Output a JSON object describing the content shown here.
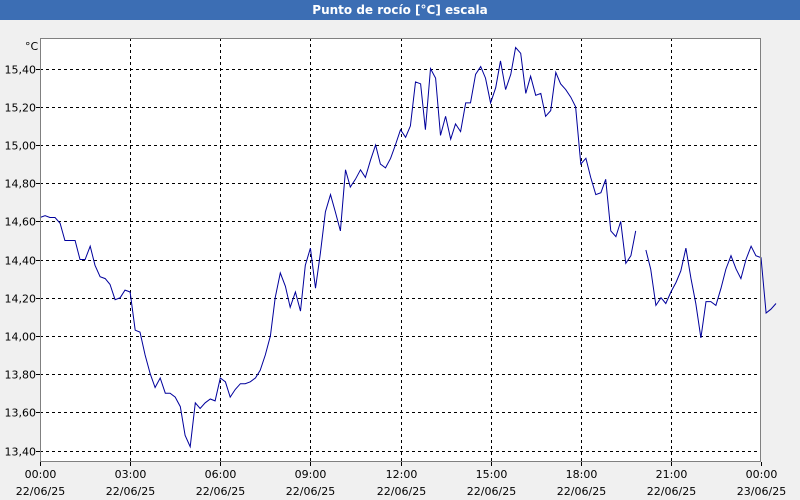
{
  "window": {
    "title": "Punto de rocío [°C] escala"
  },
  "colors": {
    "line": "#00009c",
    "grid": "#000000",
    "plot_bg": "#ffffff",
    "title_bg": "#3c6eb4"
  },
  "chart_data": {
    "type": "line",
    "title": "Punto de rocío [°C] escala",
    "ylabel": "°C",
    "xlabel": "",
    "grid": true,
    "xlim": [
      0,
      24
    ],
    "ylim": [
      13.34,
      15.56
    ],
    "y_ticks": [
      {
        "value": 13.4,
        "label": "13,40"
      },
      {
        "value": 13.6,
        "label": "13,60"
      },
      {
        "value": 13.8,
        "label": "13,80"
      },
      {
        "value": 14.0,
        "label": "14,00"
      },
      {
        "value": 14.2,
        "label": "14,20"
      },
      {
        "value": 14.4,
        "label": "14,40"
      },
      {
        "value": 14.6,
        "label": "14,60"
      },
      {
        "value": 14.8,
        "label": "14,80"
      },
      {
        "value": 15.0,
        "label": "15,00"
      },
      {
        "value": 15.2,
        "label": "15,20"
      },
      {
        "value": 15.4,
        "label": "15,40"
      }
    ],
    "x_ticks": [
      {
        "value": 0,
        "time": "00:00",
        "date": "22/06/25"
      },
      {
        "value": 3,
        "time": "03:00",
        "date": "22/06/25"
      },
      {
        "value": 6,
        "time": "06:00",
        "date": "22/06/25"
      },
      {
        "value": 9,
        "time": "09:00",
        "date": "22/06/25"
      },
      {
        "value": 12,
        "time": "12:00",
        "date": "22/06/25"
      },
      {
        "value": 15,
        "time": "15:00",
        "date": "22/06/25"
      },
      {
        "value": 18,
        "time": "18:00",
        "date": "22/06/25"
      },
      {
        "value": 21,
        "time": "21:00",
        "date": "22/06/25"
      },
      {
        "value": 24,
        "time": "00:00",
        "date": "23/06/25"
      }
    ],
    "series": [
      {
        "segments": [
          [
            [
              0.0,
              14.62
            ],
            [
              0.17,
              14.63
            ],
            [
              0.33,
              14.62
            ],
            [
              0.5,
              14.62
            ],
            [
              0.67,
              14.59
            ],
            [
              0.83,
              14.5
            ],
            [
              1.0,
              14.5
            ],
            [
              1.17,
              14.5
            ],
            [
              1.33,
              14.4
            ],
            [
              1.5,
              14.4
            ],
            [
              1.67,
              14.47
            ],
            [
              1.83,
              14.37
            ],
            [
              2.0,
              14.31
            ],
            [
              2.17,
              14.3
            ],
            [
              2.33,
              14.27
            ],
            [
              2.5,
              14.19
            ],
            [
              2.67,
              14.2
            ],
            [
              2.83,
              14.24
            ],
            [
              3.0,
              14.23
            ],
            [
              3.17,
              14.03
            ],
            [
              3.33,
              14.02
            ],
            [
              3.5,
              13.9
            ],
            [
              3.67,
              13.8
            ],
            [
              3.83,
              13.73
            ],
            [
              4.0,
              13.78
            ],
            [
              4.17,
              13.7
            ],
            [
              4.33,
              13.7
            ],
            [
              4.5,
              13.68
            ],
            [
              4.67,
              13.63
            ],
            [
              4.83,
              13.48
            ],
            [
              5.0,
              13.42
            ],
            [
              5.17,
              13.65
            ],
            [
              5.33,
              13.62
            ],
            [
              5.5,
              13.65
            ],
            [
              5.67,
              13.67
            ],
            [
              5.83,
              13.66
            ],
            [
              6.0,
              13.78
            ],
            [
              6.17,
              13.76
            ],
            [
              6.33,
              13.68
            ],
            [
              6.5,
              13.72
            ],
            [
              6.67,
              13.75
            ],
            [
              6.83,
              13.75
            ],
            [
              7.0,
              13.76
            ],
            [
              7.17,
              13.78
            ],
            [
              7.33,
              13.82
            ],
            [
              7.5,
              13.9
            ],
            [
              7.67,
              14.0
            ],
            [
              7.83,
              14.2
            ],
            [
              8.0,
              14.33
            ],
            [
              8.17,
              14.26
            ],
            [
              8.33,
              14.15
            ],
            [
              8.5,
              14.23
            ],
            [
              8.67,
              14.13
            ],
            [
              8.83,
              14.37
            ],
            [
              9.0,
              14.46
            ],
            [
              9.17,
              14.25
            ],
            [
              9.33,
              14.43
            ],
            [
              9.5,
              14.65
            ],
            [
              9.67,
              14.74
            ],
            [
              9.83,
              14.65
            ],
            [
              10.0,
              14.55
            ],
            [
              10.17,
              14.87
            ],
            [
              10.33,
              14.78
            ],
            [
              10.5,
              14.82
            ],
            [
              10.67,
              14.87
            ],
            [
              10.83,
              14.83
            ],
            [
              11.0,
              14.92
            ],
            [
              11.17,
              15.0
            ],
            [
              11.33,
              14.9
            ],
            [
              11.5,
              14.88
            ],
            [
              11.67,
              14.93
            ],
            [
              11.83,
              15.0
            ],
            [
              12.0,
              15.08
            ],
            [
              12.17,
              15.04
            ],
            [
              12.33,
              15.1
            ],
            [
              12.5,
              15.33
            ],
            [
              12.67,
              15.32
            ],
            [
              12.83,
              15.08
            ],
            [
              13.0,
              15.4
            ],
            [
              13.17,
              15.35
            ],
            [
              13.33,
              15.05
            ],
            [
              13.5,
              15.15
            ],
            [
              13.67,
              15.03
            ],
            [
              13.83,
              15.11
            ],
            [
              14.0,
              15.07
            ],
            [
              14.17,
              15.22
            ],
            [
              14.33,
              15.22
            ],
            [
              14.5,
              15.37
            ],
            [
              14.67,
              15.41
            ],
            [
              14.83,
              15.35
            ],
            [
              15.0,
              15.22
            ],
            [
              15.17,
              15.3
            ],
            [
              15.33,
              15.44
            ],
            [
              15.5,
              15.29
            ],
            [
              15.67,
              15.37
            ],
            [
              15.83,
              15.51
            ],
            [
              16.0,
              15.48
            ],
            [
              16.17,
              15.27
            ],
            [
              16.33,
              15.36
            ],
            [
              16.5,
              15.26
            ],
            [
              16.67,
              15.27
            ],
            [
              16.83,
              15.15
            ],
            [
              17.0,
              15.18
            ],
            [
              17.17,
              15.38
            ],
            [
              17.33,
              15.32
            ],
            [
              17.5,
              15.29
            ],
            [
              17.67,
              15.25
            ],
            [
              17.83,
              15.2
            ],
            [
              18.0,
              14.9
            ],
            [
              18.17,
              14.93
            ],
            [
              18.33,
              14.83
            ],
            [
              18.5,
              14.74
            ],
            [
              18.67,
              14.75
            ],
            [
              18.83,
              14.82
            ],
            [
              19.0,
              14.55
            ],
            [
              19.17,
              14.52
            ],
            [
              19.33,
              14.6
            ],
            [
              19.5,
              14.38
            ],
            [
              19.67,
              14.42
            ],
            [
              19.83,
              14.55
            ]
          ],
          [
            [
              20.17,
              14.45
            ],
            [
              20.33,
              14.35
            ],
            [
              20.5,
              14.16
            ],
            [
              20.67,
              14.2
            ],
            [
              20.83,
              14.17
            ],
            [
              21.0,
              14.23
            ],
            [
              21.17,
              14.28
            ],
            [
              21.33,
              14.34
            ],
            [
              21.5,
              14.46
            ],
            [
              21.67,
              14.3
            ],
            [
              21.83,
              14.17
            ],
            [
              22.0,
              13.99
            ],
            [
              22.17,
              14.18
            ],
            [
              22.33,
              14.18
            ],
            [
              22.5,
              14.16
            ],
            [
              22.67,
              14.25
            ],
            [
              22.83,
              14.35
            ],
            [
              23.0,
              14.42
            ],
            [
              23.17,
              14.35
            ],
            [
              23.33,
              14.3
            ],
            [
              23.5,
              14.4
            ],
            [
              23.67,
              14.47
            ],
            [
              23.83,
              14.42
            ],
            [
              24.0,
              14.41
            ],
            [
              24.17,
              14.12
            ],
            [
              24.33,
              14.14
            ],
            [
              24.5,
              14.17
            ]
          ]
        ]
      }
    ]
  }
}
